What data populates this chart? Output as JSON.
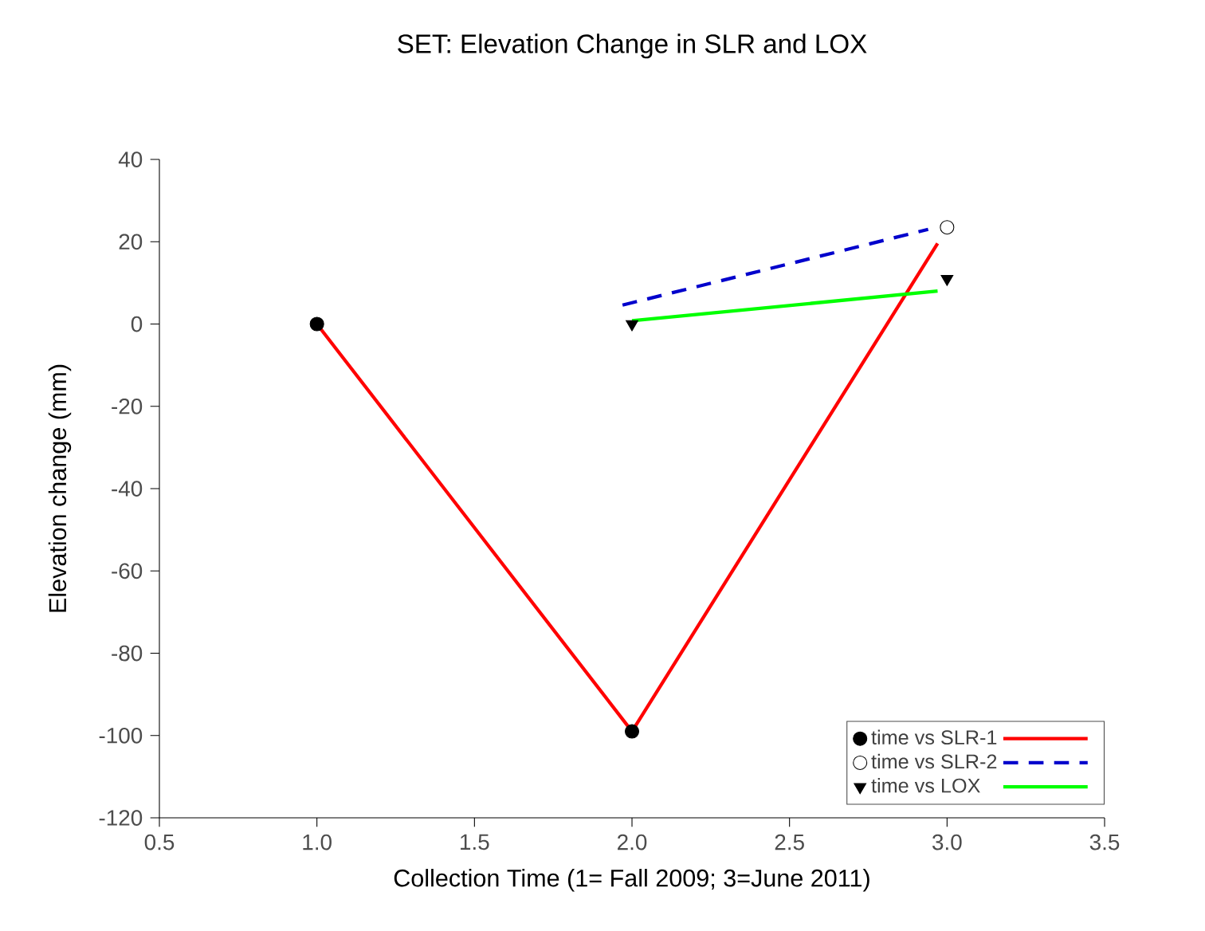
{
  "chart_data": {
    "type": "scatter",
    "title": "SET:  Elevation Change in SLR and LOX",
    "xlabel": "Collection Time (1= Fall 2009; 3=June 2011)",
    "ylabel": "Elevation change (mm)",
    "xlim": [
      0.5,
      3.5
    ],
    "xticks": [
      0.5,
      {
        "value": 1,
        "label": "1.0"
      },
      1.5,
      {
        "value": 2,
        "label": "2.0"
      },
      2.5,
      {
        "value": 3,
        "label": "3.0"
      },
      3.5
    ],
    "ylim": [
      -120,
      40
    ],
    "yticks": [
      -120,
      -100,
      -80,
      -60,
      -40,
      -20,
      0,
      20,
      40
    ],
    "grid": false,
    "legend": "bottom right",
    "series": [
      {
        "name": "time vs SLR-1",
        "marker": "circle",
        "color": "#000000",
        "x": [
          1,
          2
        ],
        "values": [
          0,
          -99
        ]
      },
      {
        "name": "time vs SLR-2",
        "marker": "circle",
        "color": "#ffffff",
        "x": [
          3
        ],
        "values": [
          23.5
        ]
      },
      {
        "name": "time vs LOX",
        "marker": "triangle",
        "color": "#000000",
        "x": [
          2,
          3
        ],
        "values": [
          0,
          11
        ]
      },
      {
        "type": "line",
        "color": "#ff0000",
        "line_style": "solid",
        "x": [
          1,
          2,
          2.97
        ],
        "values": [
          0,
          -99,
          19.6
        ]
      },
      {
        "type": "line",
        "color": "#0000cc",
        "line_style": "dashed",
        "x": [
          1.97,
          2.94
        ],
        "values": [
          4.6,
          23
        ]
      },
      {
        "type": "line",
        "color": "#00ff00",
        "line_style": "solid",
        "x": [
          2,
          2.97
        ],
        "values": [
          0.8,
          8
        ]
      }
    ]
  }
}
